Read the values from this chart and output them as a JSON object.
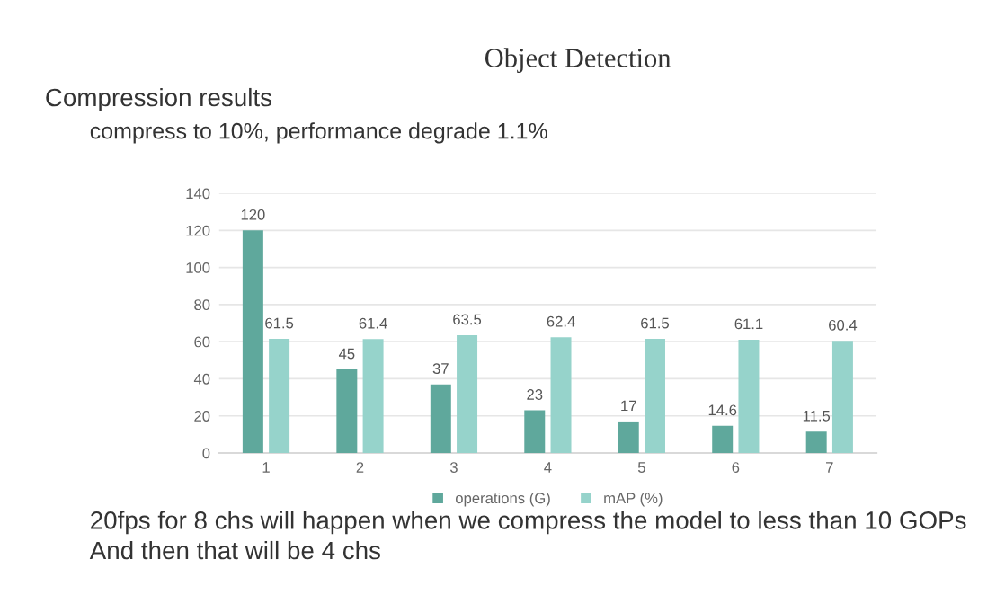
{
  "chart_data": {
    "type": "bar",
    "title": "Object Detection",
    "annotations": [
      "Compression results",
      "compress to 10%, performance degrade 1.1%",
      "20fps for 8 chs will happen when we compress the model to less than 10 GOPs",
      "And then that will be 4 chs"
    ],
    "categories": [
      "1",
      "2",
      "3",
      "4",
      "5",
      "6",
      "7"
    ],
    "series": [
      {
        "name": "operations (G)",
        "color": "#5fa89c",
        "values": [
          120,
          45,
          37,
          23,
          17,
          14.6,
          11.5
        ]
      },
      {
        "name": "mAP (%)",
        "color": "#96d3cb",
        "values": [
          61.5,
          61.4,
          63.5,
          62.4,
          61.5,
          61.1,
          60.4
        ]
      }
    ],
    "ylim": [
      0,
      140
    ],
    "yticks": [
      0,
      20,
      40,
      60,
      80,
      100,
      120,
      140
    ],
    "grid": "y",
    "data_labels": true,
    "legend": "bottom"
  }
}
